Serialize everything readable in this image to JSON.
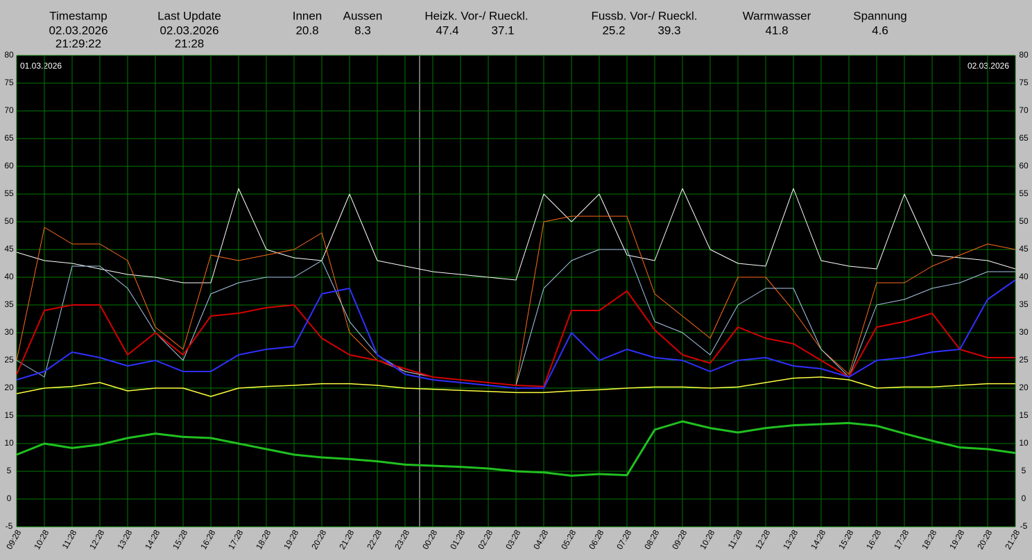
{
  "header": {
    "fields": [
      {
        "label": "Timestamp",
        "values": [
          "02.03.2026",
          "21:29:22"
        ]
      },
      {
        "label": "Last Update",
        "values": [
          "02.03.2026",
          "21:28"
        ]
      },
      {
        "label": "Innen",
        "values": [
          "20.8"
        ]
      },
      {
        "label": "Aussen",
        "values": [
          "8.3"
        ]
      },
      {
        "label": "Heizk. Vor-/ Rueckl.",
        "values": [
          "47.4",
          "37.1"
        ]
      },
      {
        "label": "Fussb. Vor-/ Rueckl.",
        "values": [
          "25.2",
          "39.3"
        ]
      },
      {
        "label": "Warmwasser",
        "values": [
          "41.8"
        ]
      },
      {
        "label": "Spannung",
        "values": [
          "4.6"
        ]
      }
    ]
  },
  "chart_data": {
    "type": "line",
    "annotations": [
      "01.03.2026",
      "02.03.2026"
    ],
    "categories": [
      "09:28",
      "10:28",
      "11:28",
      "12:28",
      "13:28",
      "14:28",
      "15:28",
      "16:28",
      "17:28",
      "18:28",
      "19:28",
      "20:28",
      "21:28",
      "22:28",
      "23:28",
      "00:28",
      "01:28",
      "02:28",
      "03:28",
      "04:28",
      "05:28",
      "06:28",
      "07:28",
      "08:28",
      "09:28",
      "10:28",
      "11:28",
      "12:28",
      "13:28",
      "14:28",
      "15:28",
      "16:28",
      "17:28",
      "18:28",
      "19:28",
      "20:28",
      "21:28"
    ],
    "ylim": [
      -5,
      80
    ],
    "yticks": [
      -5,
      0,
      5,
      10,
      15,
      20,
      25,
      30,
      35,
      40,
      45,
      50,
      55,
      60,
      65,
      70,
      75,
      80
    ],
    "grid": true,
    "series": [
      {
        "color": "#ffffff",
        "values": [
          44.5,
          43,
          42.5,
          41.5,
          40.5,
          40,
          39,
          39,
          56,
          45,
          43.5,
          43,
          55,
          43,
          42,
          41,
          40.5,
          40,
          39.5,
          55,
          50,
          55,
          44,
          43,
          56,
          45,
          42.5,
          42,
          56,
          43,
          42,
          41.5,
          55,
          44,
          43.5,
          43,
          41.5
        ]
      },
      {
        "color": "#ff6a1a",
        "values": [
          25,
          49,
          46,
          46,
          43,
          31,
          27,
          44,
          43,
          44,
          45,
          48,
          30,
          25,
          23,
          22,
          21.5,
          21,
          20.5,
          50,
          51,
          51,
          51,
          37,
          33,
          29,
          40,
          40,
          34,
          27,
          22.5,
          39,
          39,
          42,
          44,
          46,
          45
        ]
      },
      {
        "color": "#a8c8e8",
        "values": [
          25,
          22,
          42,
          42,
          38,
          30,
          25,
          37,
          39,
          40,
          40,
          43,
          32,
          26,
          23,
          22,
          21.5,
          21,
          20.5,
          38,
          43,
          45,
          45,
          32,
          30,
          26,
          35,
          38,
          38,
          27,
          22,
          35,
          36,
          38,
          39,
          41,
          41
        ]
      },
      {
        "color": "#d40000",
        "values": [
          22.5,
          34,
          35,
          35,
          26,
          30,
          26,
          33,
          33.5,
          34.5,
          35,
          29,
          26,
          25,
          23.5,
          22,
          21.5,
          21,
          20.5,
          20.3,
          34,
          34,
          37.5,
          30.5,
          26,
          24.5,
          31,
          29,
          28,
          25,
          22,
          31,
          32,
          33.5,
          27,
          25.5,
          25.5
        ]
      },
      {
        "color": "#3030ff",
        "values": [
          21.5,
          23,
          26.5,
          25.5,
          24,
          25,
          23,
          23,
          26,
          27,
          27.5,
          37,
          38,
          26,
          22.5,
          21.5,
          21,
          20.5,
          20,
          20,
          30,
          25,
          27,
          25.5,
          25,
          23,
          25,
          25.5,
          24,
          23.5,
          22,
          25,
          25.5,
          26.5,
          27,
          36,
          39.5
        ]
      },
      {
        "color": "#ffff40",
        "values": [
          19,
          20,
          20.3,
          21,
          19.5,
          20,
          20,
          18.5,
          20,
          20.3,
          20.5,
          20.8,
          20.8,
          20.5,
          20,
          19.8,
          19.6,
          19.4,
          19.2,
          19.2,
          19.5,
          19.7,
          20,
          20.2,
          20.2,
          20,
          20.2,
          21,
          21.8,
          22,
          21.5,
          20,
          20.2,
          20.2,
          20.5,
          20.8,
          20.8
        ]
      },
      {
        "color": "#20c020",
        "values": [
          8,
          10,
          9.2,
          9.8,
          11,
          11.8,
          11.2,
          11,
          10,
          9,
          8,
          7.5,
          7.2,
          6.8,
          6.2,
          6,
          5.8,
          5.5,
          5,
          4.8,
          4.2,
          4.5,
          4.3,
          12.5,
          14,
          12.8,
          12,
          12.8,
          13.3,
          13.5,
          13.7,
          13.2,
          11.8,
          10.5,
          9.3,
          9,
          8.3
        ]
      }
    ]
  }
}
